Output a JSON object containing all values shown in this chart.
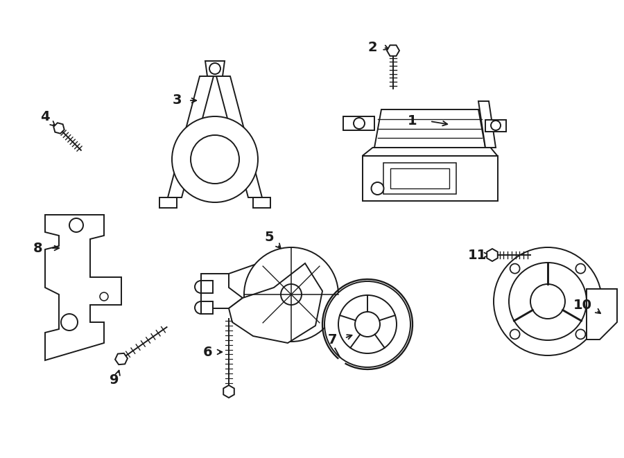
{
  "background_color": "#ffffff",
  "line_color": "#1a1a1a",
  "line_width": 1.4,
  "fig_width": 9.0,
  "fig_height": 6.61,
  "dpi": 100
}
